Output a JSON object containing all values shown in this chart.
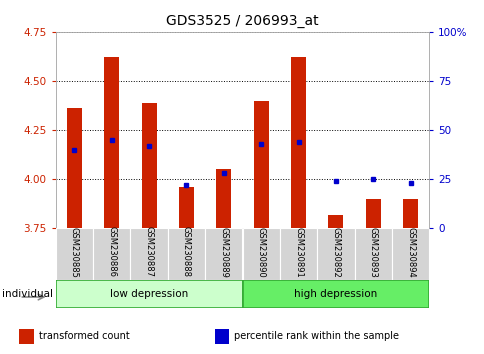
{
  "title": "GDS3525 / 206993_at",
  "samples": [
    "GSM230885",
    "GSM230886",
    "GSM230887",
    "GSM230888",
    "GSM230889",
    "GSM230890",
    "GSM230891",
    "GSM230892",
    "GSM230893",
    "GSM230894"
  ],
  "transformed_count": [
    4.36,
    4.62,
    4.39,
    3.96,
    4.05,
    4.4,
    4.62,
    3.82,
    3.9,
    3.9
  ],
  "percentile_rank": [
    40,
    45,
    42,
    22,
    28,
    43,
    44,
    24,
    25,
    23
  ],
  "ylim": [
    3.75,
    4.75
  ],
  "yticks": [
    3.75,
    4.0,
    4.25,
    4.5,
    4.75
  ],
  "right_yticks": [
    0,
    25,
    50,
    75,
    100
  ],
  "bar_color": "#cc2200",
  "dot_color": "#0000cc",
  "bar_width": 0.4,
  "groups": [
    {
      "label": "low depression",
      "start": 0,
      "end": 5,
      "color": "#ccffcc"
    },
    {
      "label": "high depression",
      "start": 5,
      "end": 10,
      "color": "#66ee66"
    }
  ],
  "legend_items": [
    {
      "label": "transformed count",
      "color": "#cc2200"
    },
    {
      "label": "percentile rank within the sample",
      "color": "#0000cc"
    }
  ],
  "individual_label": "individual",
  "background_color": "#ffffff",
  "plot_bg": "#ffffff",
  "title_fontsize": 10,
  "tick_fontsize": 7.5,
  "left_tick_color": "#cc2200",
  "right_tick_color": "#0000cc"
}
